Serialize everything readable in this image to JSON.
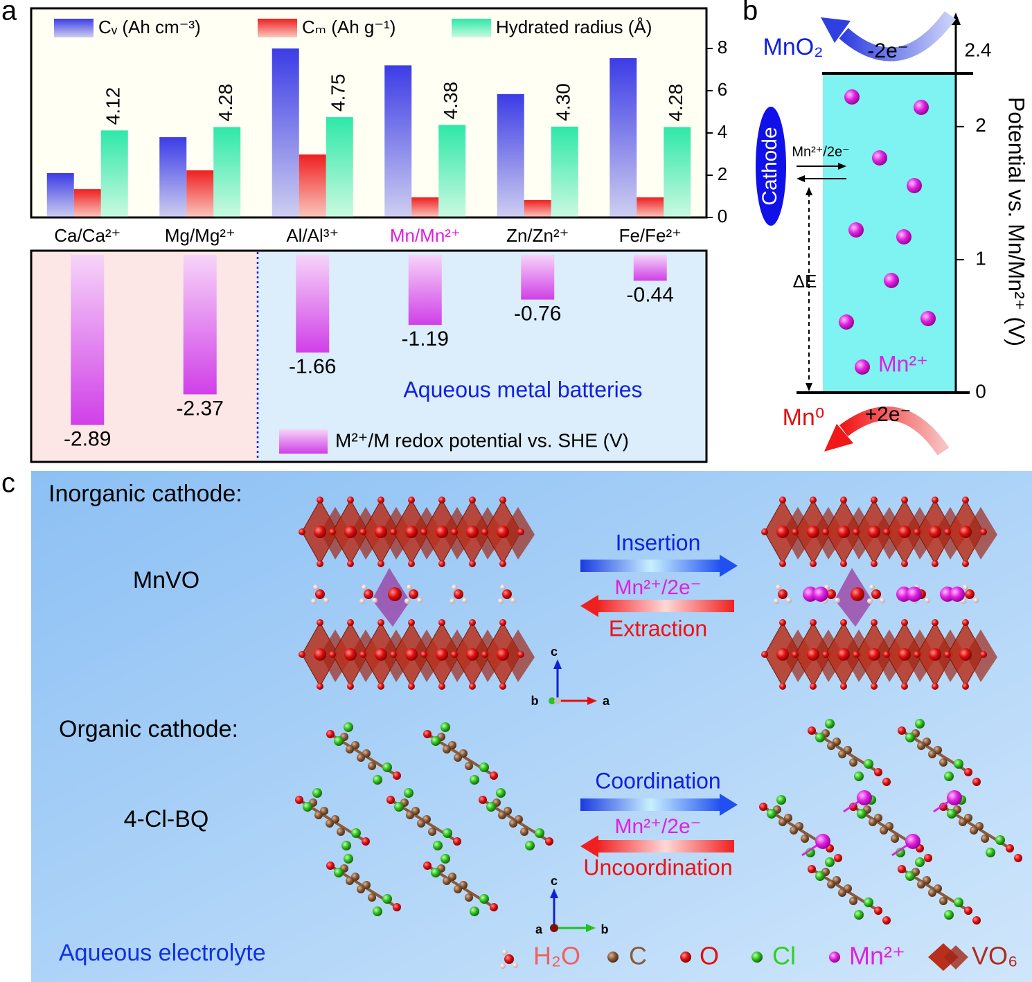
{
  "chart_data": [
    {
      "type": "bar",
      "panel_label": "a",
      "categories": [
        "Ca/Ca²⁺",
        "Mg/Mg²⁺",
        "Al/Al³⁺",
        "Mn/Mn²⁺",
        "Zn/Zn²⁺",
        "Fe/Fe²⁺"
      ],
      "category_colors": [
        "#000000",
        "#000000",
        "#000000",
        "#e020e0",
        "#000000",
        "#000000"
      ],
      "series": [
        {
          "name": "Cᵥ (Ah cm⁻³)",
          "color": "#3c3ce6",
          "values": [
            2.1,
            3.8,
            8.0,
            7.2,
            5.84,
            7.54
          ]
        },
        {
          "name": "Cₘ (Ah g⁻¹)",
          "color": "#ee2020",
          "values": [
            1.34,
            2.23,
            2.98,
            0.95,
            0.82,
            0.95
          ]
        },
        {
          "name": "Hydrated radius (Å)",
          "color": "#2ee8a8",
          "values": [
            4.12,
            4.28,
            4.75,
            4.38,
            4.3,
            4.28
          ],
          "value_labels": [
            "4.12",
            "4.28",
            "4.75",
            "4.38",
            "4.30",
            "4.28"
          ]
        }
      ],
      "ylim": [
        0,
        9.9
      ],
      "yticks": [
        0,
        2,
        4,
        6,
        8
      ],
      "axis_side": "right"
    },
    {
      "type": "bar",
      "series": [
        {
          "name": "M²⁺/M redox potential vs. SHE (V)",
          "color": "#d040e8",
          "values": [
            -2.89,
            -2.37,
            -1.66,
            -1.19,
            -0.76,
            -0.44
          ]
        }
      ],
      "annotation": "Aqueous metal batteries"
    }
  ],
  "panel_b": {
    "label": "b",
    "axis_title": "Potential vs. Mn/Mn²⁺ (V)",
    "ylim": [
      0,
      2.4
    ],
    "yticks": [
      0,
      1,
      2,
      2.4
    ],
    "oxidized": "MnO₂",
    "oxidation": "-2e⁻",
    "reduced": "Mn⁰",
    "reduction": "+2e⁻",
    "ion": "Mn²⁺",
    "electrode": "Cathode",
    "reaction": "Mn²⁺/2e⁻",
    "gap": "ΔE"
  },
  "panel_c": {
    "label": "c",
    "inorganic_title": "Inorganic cathode:",
    "inorganic_name": "MnVO",
    "organic_title": "Organic cathode:",
    "organic_name": "4-Cl-BQ",
    "electrolyte": "Aqueous electrolyte",
    "inorganic_arrows": {
      "forward": "Insertion",
      "ion": "Mn²⁺/2e⁻",
      "backward": "Extraction"
    },
    "organic_arrows": {
      "forward": "Coordination",
      "ion": "Mn²⁺/2e⁻",
      "backward": "Uncoordination"
    },
    "axes_1": [
      "c",
      "b",
      "a"
    ],
    "axes_2": [
      "c",
      "a",
      "b"
    ],
    "legend": [
      "H₂O",
      "C",
      "O",
      "Cl",
      "Mn²⁺",
      "VO₆"
    ]
  }
}
